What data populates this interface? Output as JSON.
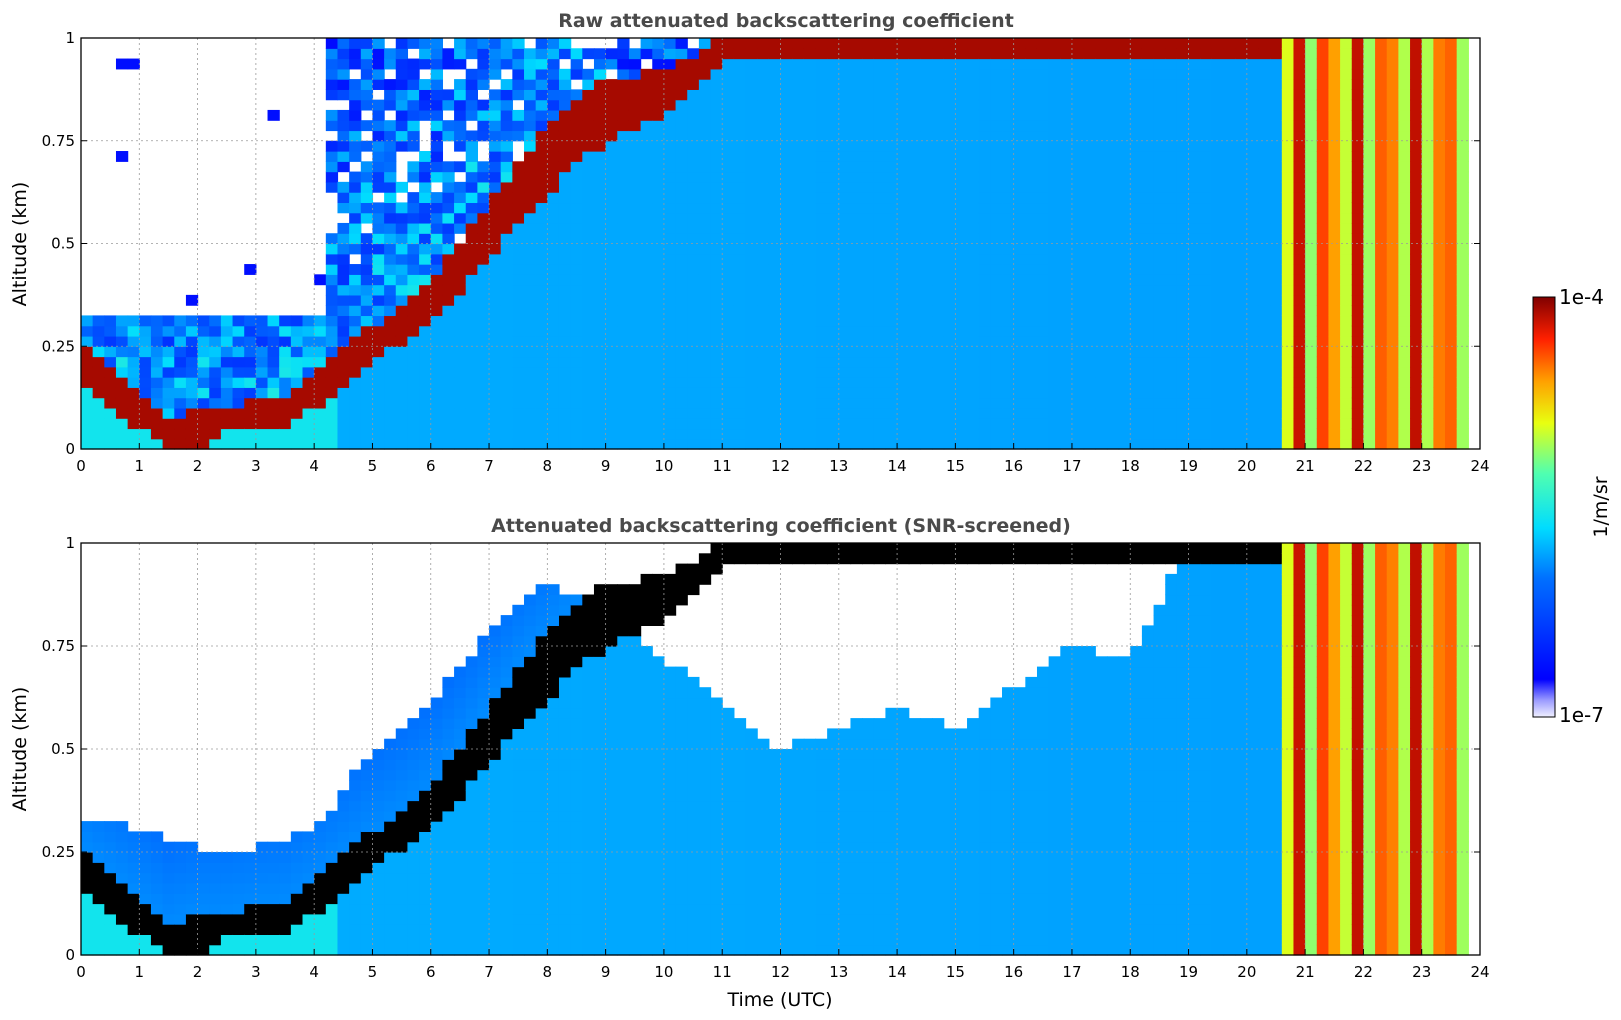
{
  "chart_data": [
    {
      "type": "heatmap",
      "title": "Raw attenuated backscattering coefficient",
      "xlabel": "",
      "ylabel": "Altitude (km)",
      "xlim": [
        0,
        24
      ],
      "ylim": [
        0,
        1
      ],
      "x_ticks": [
        "0",
        "1",
        "2",
        "3",
        "4",
        "5",
        "6",
        "7",
        "8",
        "9",
        "10",
        "11",
        "12",
        "13",
        "14",
        "15",
        "16",
        "17",
        "18",
        "19",
        "20",
        "21",
        "22",
        "23",
        "24"
      ],
      "y_ticks": [
        "0",
        "0.25",
        "0.5",
        "0.75",
        "1"
      ],
      "grid": true,
      "colormap": "jet",
      "color_scale": "log",
      "color_range": [
        1e-07,
        0.0001
      ],
      "layer_top_km": [
        [
          0,
          0.26
        ],
        [
          0.5,
          0.2
        ],
        [
          1,
          0.14
        ],
        [
          1.5,
          0.07
        ],
        [
          2,
          0.1
        ],
        [
          2.5,
          0.1
        ],
        [
          3,
          0.12
        ],
        [
          3.5,
          0.13
        ],
        [
          4,
          0.18
        ],
        [
          4.5,
          0.24
        ],
        [
          5,
          0.3
        ],
        [
          5.5,
          0.35
        ],
        [
          6,
          0.41
        ],
        [
          6.5,
          0.5
        ],
        [
          7,
          0.6
        ],
        [
          7.5,
          0.7
        ],
        [
          8,
          0.78
        ],
        [
          8.5,
          0.85
        ],
        [
          9,
          0.9
        ],
        [
          10,
          0.92
        ],
        [
          11,
          1.0
        ]
      ],
      "layer_bottom_km": [
        [
          0,
          0.16
        ],
        [
          0.5,
          0.1
        ],
        [
          1,
          0.05
        ],
        [
          1.5,
          0.0
        ],
        [
          2,
          0.0
        ],
        [
          2.5,
          0.04
        ],
        [
          3,
          0.05
        ],
        [
          3.5,
          0.06
        ],
        [
          4,
          0.1
        ],
        [
          4.5,
          0.16
        ],
        [
          5,
          0.21
        ],
        [
          5.5,
          0.26
        ],
        [
          6,
          0.31
        ],
        [
          6.5,
          0.38
        ],
        [
          7,
          0.47
        ],
        [
          7.5,
          0.55
        ],
        [
          8,
          0.62
        ],
        [
          8.5,
          0.7
        ],
        [
          9,
          0.74
        ],
        [
          10,
          0.82
        ],
        [
          11,
          0.95
        ]
      ],
      "clear_air_region": {
        "time": [
          0,
          4.2
        ],
        "altitude_km": [
          0.33,
          1
        ]
      },
      "precipitation_band": {
        "time": [
          20.7,
          23.8
        ],
        "level": "high"
      },
      "no_data_after": 23.8
    },
    {
      "type": "heatmap",
      "title": "Attenuated backscattering coefficient (SNR-screened)",
      "xlabel": "Time (UTC)",
      "ylabel": "Altitude (km)",
      "xlim": [
        0,
        24
      ],
      "ylim": [
        0,
        1
      ],
      "x_ticks": [
        "0",
        "1",
        "2",
        "3",
        "4",
        "5",
        "6",
        "7",
        "8",
        "9",
        "10",
        "11",
        "12",
        "13",
        "14",
        "15",
        "16",
        "17",
        "18",
        "19",
        "20",
        "21",
        "22",
        "23",
        "24"
      ],
      "y_ticks": [
        "0",
        "0.25",
        "0.5",
        "0.75",
        "1"
      ],
      "grid": true,
      "colormap": "jet",
      "color_scale": "log",
      "color_range": [
        1e-07,
        0.0001
      ],
      "screened_top_km": [
        [
          0,
          0.35
        ],
        [
          1,
          0.3
        ],
        [
          2,
          0.26
        ],
        [
          3,
          0.26
        ],
        [
          4,
          0.3
        ],
        [
          5,
          0.5
        ],
        [
          6,
          0.62
        ],
        [
          7,
          0.78
        ],
        [
          8,
          0.9
        ],
        [
          9,
          0.85
        ],
        [
          10,
          0.72
        ],
        [
          11,
          0.62
        ],
        [
          12,
          0.5
        ],
        [
          13,
          0.55
        ],
        [
          14,
          0.6
        ],
        [
          15,
          0.55
        ],
        [
          16,
          0.65
        ],
        [
          17,
          0.75
        ],
        [
          18,
          0.72
        ],
        [
          19,
          1.0
        ],
        [
          20,
          1.0
        ],
        [
          24,
          1.0
        ]
      ]
    }
  ],
  "colorbar": {
    "label": "1/m/sr",
    "max_label": "1e-4",
    "min_label": "1e-7"
  }
}
